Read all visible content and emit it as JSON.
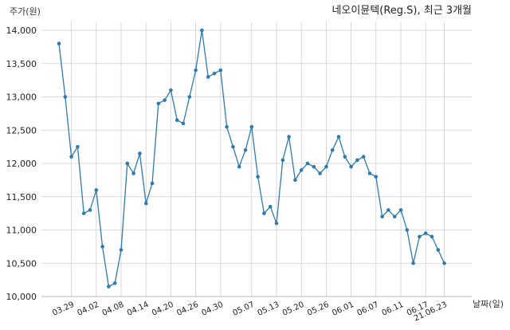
{
  "chart_data": {
    "type": "line",
    "title": "네오이뮨텍(Reg.S), 최근 3개월",
    "ylabel": "주가(원)",
    "xlabel": "날짜(일)",
    "ylim": [
      10000,
      14000
    ],
    "yticks": [
      10000,
      10500,
      11000,
      11500,
      12000,
      12500,
      13000,
      13500,
      14000
    ],
    "ytick_labels": [
      "10,000",
      "10,500",
      "11,000",
      "11,500",
      "12,000",
      "12,500",
      "13,000",
      "13,500",
      "14,000"
    ],
    "xtick_labels": [
      "03.29",
      "04.02",
      "04.08",
      "04.14",
      "04.20",
      "04.26",
      "04.30",
      "05.07",
      "05.13",
      "05.20",
      "05.26",
      "06.01",
      "06.07",
      "06.11",
      "06.17",
      "21.06.23"
    ],
    "xtick_index": [
      2,
      6,
      10,
      14,
      18,
      22,
      26,
      31,
      35,
      39,
      43,
      47,
      51,
      55,
      59,
      62
    ],
    "grid": true,
    "color": "#2e7bb0",
    "series": [
      {
        "values": [
          13800,
          13000,
          12100,
          12250,
          11250,
          11300,
          11600,
          10750,
          10150,
          10200,
          10700,
          12000,
          11850,
          12150,
          11400,
          11700,
          12900,
          12950,
          13100,
          12650,
          12600,
          13000,
          13400,
          14000,
          13300,
          13350,
          13400,
          12550,
          12250,
          11950,
          12200,
          12550,
          11800,
          11250,
          11350,
          11100,
          12050,
          12400,
          11750,
          11900,
          12000,
          11950,
          11850,
          11950,
          12200,
          12400,
          12100,
          11950,
          12050,
          12100,
          11850,
          11800,
          11200,
          11300,
          11200,
          11300,
          11000,
          10500,
          10900,
          10950,
          10900,
          10700,
          10500
        ]
      }
    ]
  }
}
